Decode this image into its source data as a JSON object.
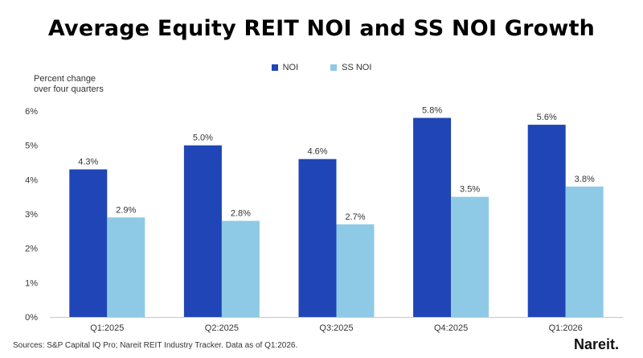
{
  "title": "Average Equity REIT NOI and SS NOI Growth",
  "ylabel_lines": [
    "Percent change",
    "over four quarters"
  ],
  "source": "Sources: S&P Capital IQ Pro; Nareit REIT Industry Tracker. Data as of Q1:2026.",
  "logo": "Nareit.",
  "colors": {
    "noi": "#1f45b6",
    "ss_noi": "#8ecae6",
    "axis": "#c8c8c8"
  },
  "chart_data": {
    "type": "bar",
    "title": "Average Equity REIT NOI and SS NOI Growth",
    "ylabel": "Percent change over four quarters",
    "xlabel": "",
    "categories": [
      "Q1:2025",
      "Q2:2025",
      "Q3:2025",
      "Q4:2025",
      "Q1:2026"
    ],
    "series": [
      {
        "name": "NOI",
        "values": [
          4.3,
          5.0,
          4.6,
          5.8,
          5.6
        ],
        "labels": [
          "4.3%",
          "5.0%",
          "4.6%",
          "5.8%",
          "5.6%"
        ]
      },
      {
        "name": "SS NOI",
        "values": [
          2.9,
          2.8,
          2.7,
          3.5,
          3.8
        ],
        "labels": [
          "2.9%",
          "2.8%",
          "2.7%",
          "3.5%",
          "3.8%"
        ]
      }
    ],
    "ylim": [
      0,
      6
    ],
    "yticks": [
      0,
      1,
      2,
      3,
      4,
      5,
      6
    ],
    "ytick_labels": [
      "0%",
      "1%",
      "2%",
      "3%",
      "4%",
      "5%",
      "6%"
    ],
    "grid": false,
    "legend_position": "top-center"
  }
}
